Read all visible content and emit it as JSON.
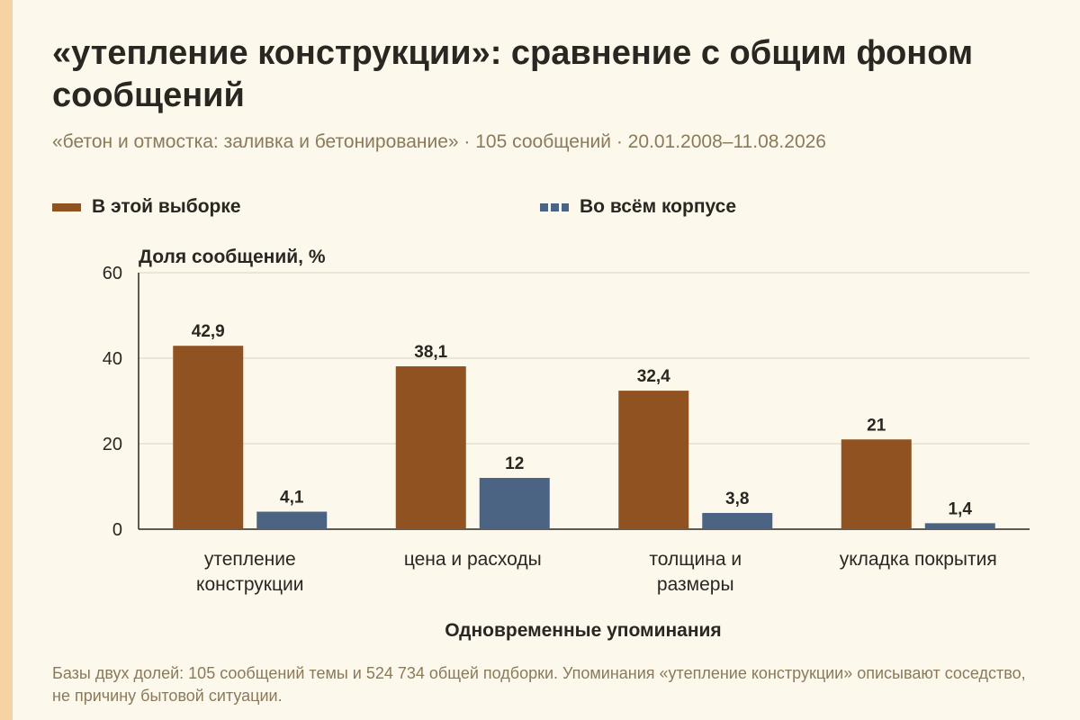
{
  "header": {
    "title": "«утепление конструкции»: сравнение с общим фоном сообщений",
    "subtitle": "«бетон и отмостка: заливка и бетонирование» · 105 сообщений · 20.01.2008–11.08.2026"
  },
  "footer": {
    "note": "Базы двух долей: 105 сообщений темы и 524 734 общей подборки. Упоминания «утепление конструкции» описывают соседство, не причину бытовой ситуации."
  },
  "colors": {
    "sample": "#8f5220",
    "corpus": "#4c6484",
    "accent_stripe": "#f5d3a3"
  },
  "chart_data": {
    "type": "bar",
    "categories": [
      [
        "утепление",
        "конструкции"
      ],
      [
        "цена и расходы"
      ],
      [
        "толщина и",
        "размеры"
      ],
      [
        "укладка покрытия"
      ]
    ],
    "series": [
      {
        "name": "В этой выборке",
        "values": [
          42.9,
          38.1,
          32.4,
          21
        ],
        "labels": [
          "42,9",
          "38,1",
          "32,4",
          "21"
        ]
      },
      {
        "name": "Во всём корпусе",
        "values": [
          4.1,
          12,
          3.8,
          1.4
        ],
        "labels": [
          "4,1",
          "12",
          "3,8",
          "1,4"
        ]
      }
    ],
    "ylabel": "Доля сообщений, %",
    "xlabel": "Одновременные упоминания",
    "ylim": [
      0,
      60
    ],
    "yticks": [
      0,
      20,
      40,
      60
    ],
    "grid": true,
    "legend": "top"
  }
}
